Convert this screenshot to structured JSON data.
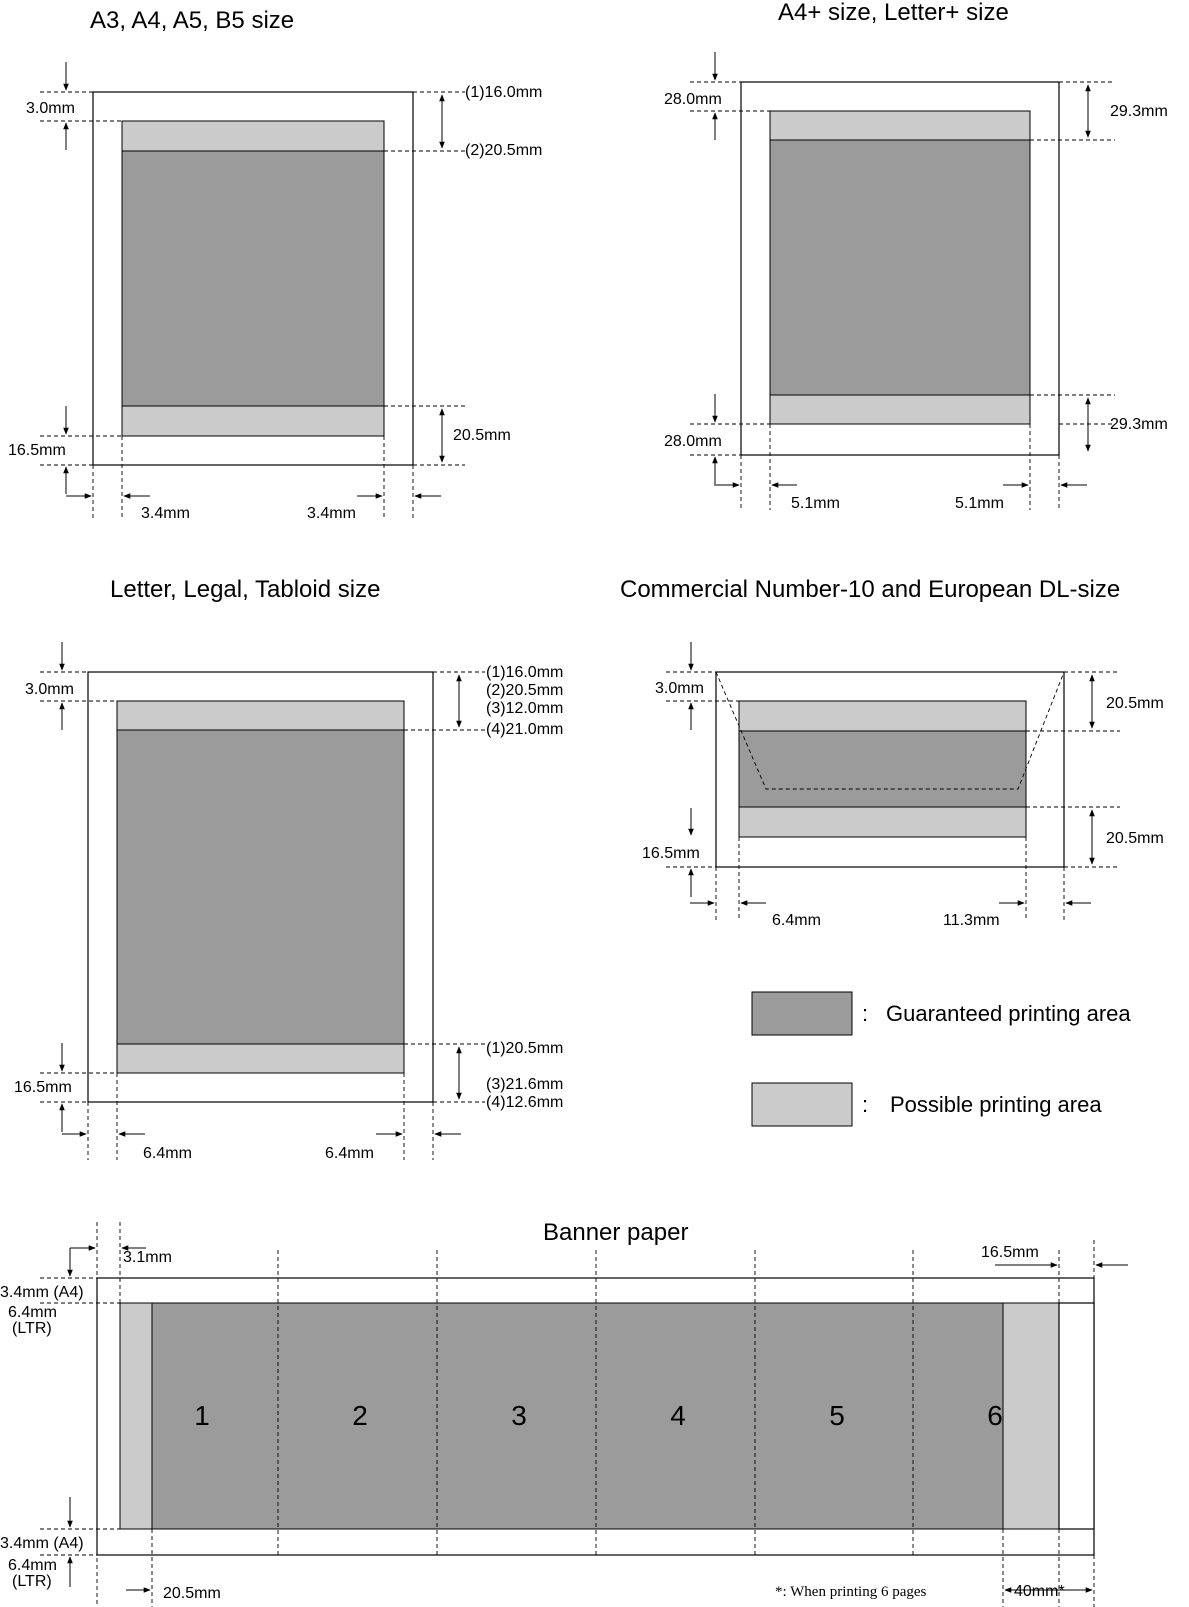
{
  "diagrams": {
    "a3": {
      "title": "A3, A4, A5, B5 size",
      "top_left": "3.0mm",
      "top_right_1": "(1)16.0mm",
      "top_right_2": "(2)20.5mm",
      "bottom_left": "16.5mm",
      "bottom_right": "20.5mm",
      "side_left": "3.4mm",
      "side_right": "3.4mm"
    },
    "a4plus": {
      "title": "A4+ size, Letter+ size",
      "top_left": "28.0mm",
      "top_right": "29.3mm",
      "bottom_left": "28.0mm",
      "bottom_right": "29.3mm",
      "side_left": "5.1mm",
      "side_right": "5.1mm"
    },
    "letter": {
      "title": "Letter, Legal, Tabloid size",
      "top_left": "3.0mm",
      "top_right_1": "(1)16.0mm",
      "top_right_2": "(2)20.5mm",
      "top_right_3": "(3)12.0mm",
      "top_right_4": "(4)21.0mm",
      "bottom_left": "16.5mm",
      "bottom_right_1": "(1)20.5mm",
      "bottom_right_3": "(3)21.6mm",
      "bottom_right_4": "(4)12.6mm",
      "side_left": "6.4mm",
      "side_right": "6.4mm"
    },
    "envelope": {
      "title": "Commercial Number-10 and European DL-size",
      "top_left": "3.0mm",
      "top_right": "20.5mm",
      "bottom_left": "16.5mm",
      "bottom_right": "20.5mm",
      "side_left": "6.4mm",
      "side_right": "11.3mm"
    },
    "banner": {
      "title": "Banner paper",
      "left_margin": "3.1mm",
      "right_margin": "16.5mm",
      "top_a4": "3.4mm (A4)",
      "top_ltr_1": "6.4mm",
      "top_ltr_2": "(LTR)",
      "bottom_a4": "3.4mm (A4)",
      "bottom_ltr_1": "6.4mm",
      "bottom_ltr_2": "(LTR)",
      "bottom_left": "20.5mm",
      "note": "*:  When printing 6 pages",
      "bottom_right": "40mm*",
      "pages": [
        "1",
        "2",
        "3",
        "4",
        "5",
        "6"
      ]
    }
  },
  "legend": {
    "colon": ":",
    "guaranteed": "Guaranteed printing area",
    "possible": "Possible printing area"
  },
  "colors": {
    "guaranteed": "#9b9b9b",
    "possible": "#cbcbcb"
  }
}
